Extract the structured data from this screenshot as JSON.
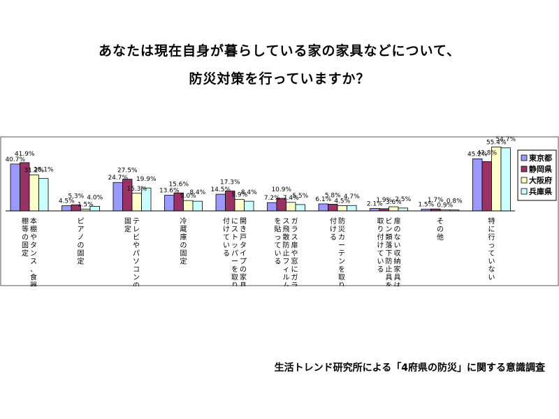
{
  "title_line1": "あなたは現在自身が暮らしている家の家具などについて、",
  "title_line2": "防災対策を行っていますか？",
  "source": "生活トレンド研究所による「4府県の防災」に関する意識調査",
  "chart_data": {
    "type": "bar",
    "legend_position": "right",
    "ylim": [
      0,
      60
    ],
    "grid": false,
    "categories": [
      "本棚やタンス、食器棚等の固定",
      "ピアノの固定",
      "テレビやパソコンの固定",
      "冷蔵庫の固定",
      "開き戸タイプの家具にストッパーを取り付けている",
      "ガラス扉や窓にガラス飛散防止フィルムを貼っている",
      "防災カーテンを取り付ける",
      "扉のない収納家具はビン類落下防止具を取り付けている",
      "その他",
      "特に行っていない"
    ],
    "series": [
      {
        "name": "東京都",
        "color": "#9999ff",
        "values": [
          40.7,
          4.5,
          24.7,
          13.6,
          14.5,
          7.2,
          6.1,
          2.1,
          1.5,
          45.2
        ]
      },
      {
        "name": "静岡県",
        "color": "#993366",
        "values": [
          41.9,
          5.3,
          27.5,
          15.6,
          17.3,
          10.9,
          5.8,
          1.9,
          1.7,
          42.8
        ]
      },
      {
        "name": "大阪府",
        "color": "#ffffcc",
        "values": [
          31.2,
          1.5,
          15.3,
          9.0,
          9.9,
          7.4,
          4.5,
          3.6,
          0.9,
          55.4
        ]
      },
      {
        "name": "兵庫県",
        "color": "#ccffff",
        "values": [
          28.1,
          4.0,
          19.9,
          8.4,
          8.4,
          5.5,
          4.7,
          2.5,
          0.8,
          54.7
        ]
      }
    ],
    "value_labels": [
      [
        "40.7%",
        "4.5%",
        "24.7%",
        "13.6%",
        "14.5%",
        "7.2%",
        "6.1%",
        "2.1%",
        "1.5%",
        "45.2%"
      ],
      [
        "41.9%",
        "5.3%",
        "27.5%",
        "15.6%",
        "17.3%",
        "10.9%",
        "5.8%",
        "1.9%",
        "1.7%",
        "42.8%"
      ],
      [
        "31.2%",
        "1.5%",
        "15.3%",
        "9.0%",
        "9.9%",
        "7.4%",
        "4.5%",
        "3.6%",
        "0.9%",
        "55.4%"
      ],
      [
        "28.1%",
        "4.0%",
        "19.9%",
        "8.4%",
        "8.4%",
        "5.5%",
        "4.7%",
        "2.5%",
        "0.8%",
        "54.7%"
      ]
    ]
  }
}
